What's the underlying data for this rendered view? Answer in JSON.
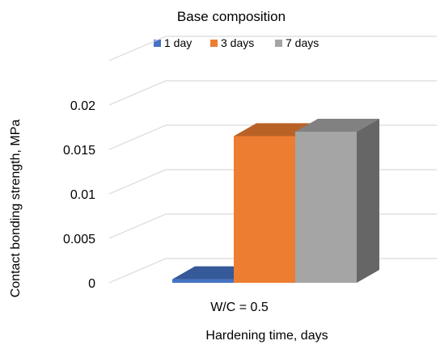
{
  "chart_data": {
    "type": "bar",
    "title": "Base composition",
    "xlabel": "Hardening time, days",
    "ylabel": "Contact bonding strength, MPa",
    "categories": [
      "W/C = 0.5"
    ],
    "series": [
      {
        "name": "1 day",
        "values": [
          0.0004
        ],
        "color": "#4472C4"
      },
      {
        "name": "3 days",
        "values": [
          0.0165
        ],
        "color": "#ED7D31"
      },
      {
        "name": "7 days",
        "values": [
          0.017
        ],
        "color": "#A5A5A5"
      }
    ],
    "ylim": [
      0,
      0.02
    ],
    "yticks": [
      "0",
      "0.005",
      "0.01",
      "0.015",
      "0.02"
    ],
    "legend_position": "top",
    "grid": true,
    "perspective": "3d"
  }
}
